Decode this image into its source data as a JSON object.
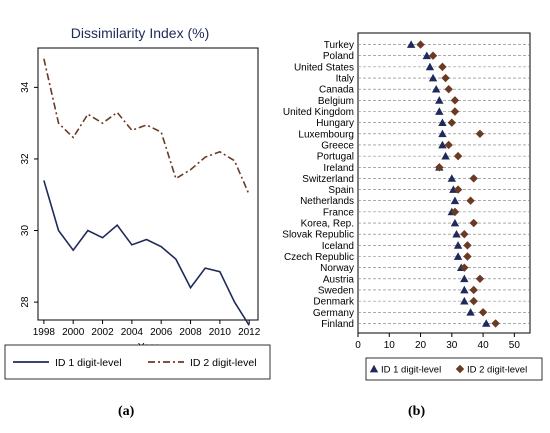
{
  "panel_labels": {
    "a": "(a)",
    "b": "(b)"
  },
  "chart_data": [
    {
      "type": "line",
      "title": "Dissimilarity Index (%)",
      "xlabel": "Year",
      "ylabel": "",
      "x": [
        1998,
        1999,
        2000,
        2001,
        2002,
        2003,
        2004,
        2005,
        2006,
        2007,
        2008,
        2009,
        2010,
        2011,
        2012
      ],
      "xticks": [
        1998,
        2000,
        2002,
        2004,
        2006,
        2008,
        2010,
        2012
      ],
      "yticks": [
        28,
        30,
        32,
        34
      ],
      "xlim": [
        1997.6,
        2012.6
      ],
      "ylim": [
        27.5,
        35.1
      ],
      "grid": false,
      "legend_position": "bottom",
      "series": [
        {
          "name": "ID 1 digit-level",
          "color": "#1f2a5a",
          "dash": "solid",
          "values": [
            31.4,
            30.0,
            29.45,
            30.0,
            29.8,
            30.15,
            29.6,
            29.75,
            29.55,
            29.2,
            28.4,
            28.95,
            28.85,
            28.0,
            27.35
          ]
        },
        {
          "name": "ID 2 digit-level",
          "color": "#6b3a25",
          "dash": "dashdot",
          "values": [
            34.8,
            33.0,
            32.6,
            33.25,
            33.0,
            33.3,
            32.8,
            32.95,
            32.75,
            31.45,
            31.7,
            32.05,
            32.2,
            31.95,
            31.0
          ]
        }
      ]
    },
    {
      "type": "scatter",
      "orientation": "horizontal-dot-plot",
      "title": "",
      "xlabel": "",
      "ylabel": "",
      "xlim": [
        0,
        55
      ],
      "xticks": [
        0,
        10,
        20,
        30,
        40,
        50
      ],
      "grid": true,
      "legend_position": "bottom",
      "categories": [
        "Turkey",
        "Poland",
        "United States",
        "Italy",
        "Canada",
        "Belgium",
        "United Kingdom",
        "Hungary",
        "Luxembourg",
        "Greece",
        "Portugal",
        "Ireland",
        "Switzerland",
        "Spain",
        "Netherlands",
        "France",
        "Korea, Rep.",
        "Slovak Republic",
        "Iceland",
        "Czech Republic",
        "Norway",
        "Austria",
        "Sweden",
        "Denmark",
        "Germany",
        "Finland"
      ],
      "series": [
        {
          "name": "ID 1 digit-level",
          "marker": "triangle",
          "color": "#1f2a5a",
          "values": [
            17,
            22,
            23,
            24,
            25,
            26,
            26,
            27,
            27,
            27,
            28,
            26,
            30,
            30.5,
            31,
            30,
            31,
            31.5,
            32,
            32,
            33,
            34,
            34,
            34,
            36,
            41
          ]
        },
        {
          "name": "ID 2 digit-level",
          "marker": "diamond",
          "color": "#6b3a25",
          "values": [
            20,
            24,
            27,
            28,
            29,
            31,
            31,
            30,
            39,
            29,
            32,
            26,
            37,
            32,
            36,
            31,
            37,
            34,
            35,
            35,
            34,
            39,
            37,
            37,
            40,
            44
          ]
        }
      ]
    }
  ]
}
